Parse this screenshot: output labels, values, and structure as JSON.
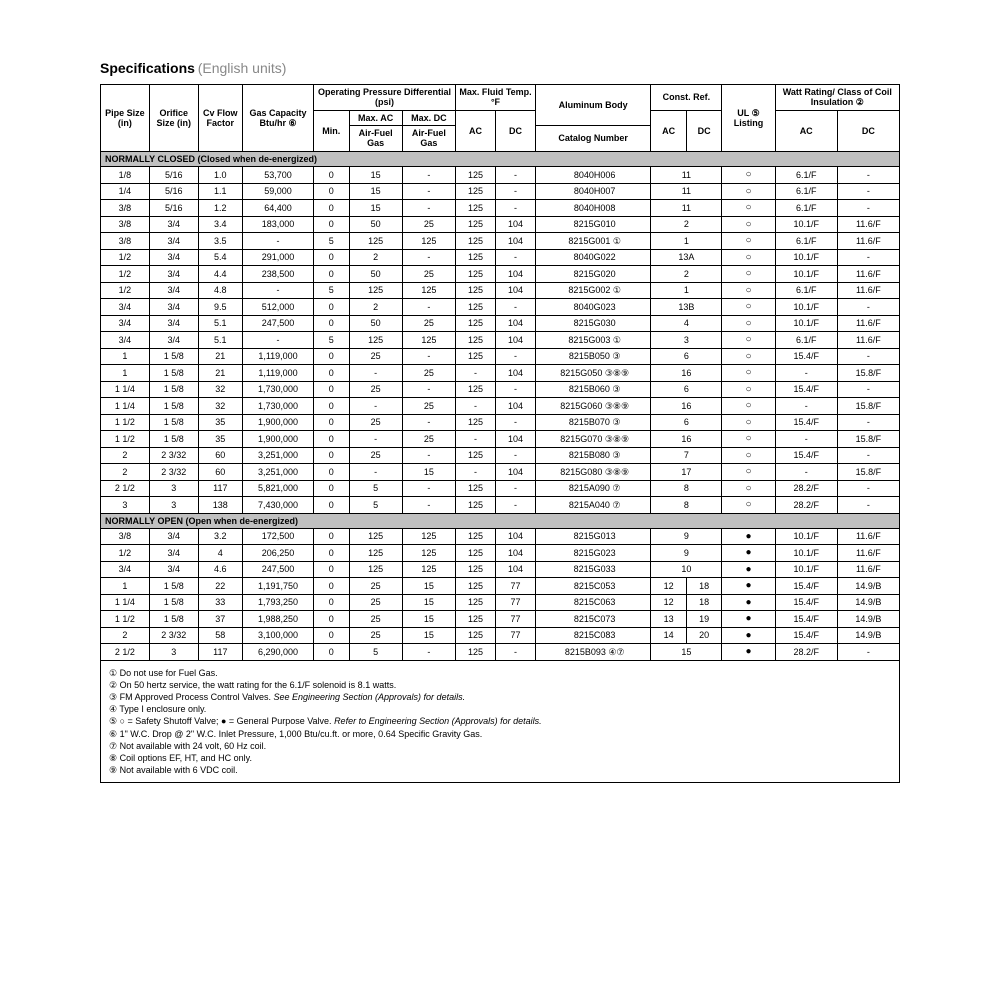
{
  "title_main": "Specifications",
  "title_sub": "(English units)",
  "headers": {
    "pipe": "Pipe Size (in)",
    "orifice": "Orifice Size (in)",
    "cv": "Cv Flow Factor",
    "gas": "Gas Capacity Btu/hr ⑥",
    "op_group": "Operating Pressure Differential (psi)",
    "min": "Min.",
    "maxac": "Max. AC",
    "maxdc": "Max. DC",
    "airfuel": "Air-Fuel Gas",
    "fluid_group": "Max. Fluid Temp. °F",
    "alum": "Aluminum Body",
    "catalog": "Catalog Number",
    "const_group": "Const. Ref.",
    "ac": "AC",
    "dc": "DC",
    "ul": "UL ⑤ Listing",
    "watt_group": "Watt Rating/ Class of Coil Insulation ②"
  },
  "section_closed": "NORMALLY CLOSED (Closed when de-energized)",
  "section_open": "NORMALLY OPEN (Open when de-energized)",
  "rows_closed": [
    {
      "pipe": "1/8",
      "orifice": "5/16",
      "cv": "1.0",
      "gas": "53,700",
      "min": "0",
      "maxac": "15",
      "maxdc": "-",
      "fac": "125",
      "fdc": "-",
      "catalog": "8040H006",
      "crefac": "11",
      "crefdc": "",
      "ul": "circle",
      "wac": "6.1/F",
      "wdc": "-",
      "cref_merge": true
    },
    {
      "pipe": "1/4",
      "orifice": "5/16",
      "cv": "1.1",
      "gas": "59,000",
      "min": "0",
      "maxac": "15",
      "maxdc": "-",
      "fac": "125",
      "fdc": "-",
      "catalog": "8040H007",
      "crefac": "11",
      "crefdc": "",
      "ul": "circle",
      "wac": "6.1/F",
      "wdc": "-",
      "cref_merge": true
    },
    {
      "pipe": "3/8",
      "orifice": "5/16",
      "cv": "1.2",
      "gas": "64,400",
      "min": "0",
      "maxac": "15",
      "maxdc": "-",
      "fac": "125",
      "fdc": "-",
      "catalog": "8040H008",
      "crefac": "11",
      "crefdc": "",
      "ul": "circle",
      "wac": "6.1/F",
      "wdc": "-",
      "cref_merge": true
    },
    {
      "pipe": "3/8",
      "orifice": "3/4",
      "cv": "3.4",
      "gas": "183,000",
      "min": "0",
      "maxac": "50",
      "maxdc": "25",
      "fac": "125",
      "fdc": "104",
      "catalog": "8215G010",
      "crefac": "2",
      "crefdc": "",
      "ul": "circle",
      "wac": "10.1/F",
      "wdc": "11.6/F",
      "cref_merge": true
    },
    {
      "pipe": "3/8",
      "orifice": "3/4",
      "cv": "3.5",
      "gas": "-",
      "min": "5",
      "maxac": "125",
      "maxdc": "125",
      "fac": "125",
      "fdc": "104",
      "catalog": "8215G001 ①",
      "crefac": "1",
      "crefdc": "",
      "ul": "circle",
      "wac": "6.1/F",
      "wdc": "11.6/F",
      "cref_merge": true
    },
    {
      "pipe": "1/2",
      "orifice": "3/4",
      "cv": "5.4",
      "gas": "291,000",
      "min": "0",
      "maxac": "2",
      "maxdc": "-",
      "fac": "125",
      "fdc": "-",
      "catalog": "8040G022",
      "crefac": "13A",
      "crefdc": "",
      "ul": "circle",
      "wac": "10.1/F",
      "wdc": "-",
      "cref_merge": true
    },
    {
      "pipe": "1/2",
      "orifice": "3/4",
      "cv": "4.4",
      "gas": "238,500",
      "min": "0",
      "maxac": "50",
      "maxdc": "25",
      "fac": "125",
      "fdc": "104",
      "catalog": "8215G020",
      "crefac": "2",
      "crefdc": "",
      "ul": "circle",
      "wac": "10.1/F",
      "wdc": "11.6/F",
      "cref_merge": true
    },
    {
      "pipe": "1/2",
      "orifice": "3/4",
      "cv": "4.8",
      "gas": "-",
      "min": "5",
      "maxac": "125",
      "maxdc": "125",
      "fac": "125",
      "fdc": "104",
      "catalog": "8215G002 ①",
      "crefac": "1",
      "crefdc": "",
      "ul": "circle",
      "wac": "6.1/F",
      "wdc": "11.6/F",
      "cref_merge": true
    },
    {
      "pipe": "3/4",
      "orifice": "3/4",
      "cv": "9.5",
      "gas": "512,000",
      "min": "0",
      "maxac": "2",
      "maxdc": "-",
      "fac": "125",
      "fdc": "-",
      "catalog": "8040G023",
      "crefac": "13B",
      "crefdc": "",
      "ul": "circle",
      "wac": "10.1/F",
      "wdc": "-",
      "cref_merge": true
    },
    {
      "pipe": "3/4",
      "orifice": "3/4",
      "cv": "5.1",
      "gas": "247,500",
      "min": "0",
      "maxac": "50",
      "maxdc": "25",
      "fac": "125",
      "fdc": "104",
      "catalog": "8215G030",
      "crefac": "4",
      "crefdc": "",
      "ul": "circle",
      "wac": "10.1/F",
      "wdc": "11.6/F",
      "cref_merge": true
    },
    {
      "pipe": "3/4",
      "orifice": "3/4",
      "cv": "5.1",
      "gas": "-",
      "min": "5",
      "maxac": "125",
      "maxdc": "125",
      "fac": "125",
      "fdc": "104",
      "catalog": "8215G003 ①",
      "crefac": "3",
      "crefdc": "",
      "ul": "circle",
      "wac": "6.1/F",
      "wdc": "11.6/F",
      "cref_merge": true
    },
    {
      "pipe": "1",
      "orifice": "1 5/8",
      "cv": "21",
      "gas": "1,119,000",
      "min": "0",
      "maxac": "25",
      "maxdc": "-",
      "fac": "125",
      "fdc": "-",
      "catalog": "8215B050 ③",
      "crefac": "6",
      "crefdc": "",
      "ul": "circle",
      "wac": "15.4/F",
      "wdc": "-",
      "cref_merge": true
    },
    {
      "pipe": "1",
      "orifice": "1 5/8",
      "cv": "21",
      "gas": "1,119,000",
      "min": "0",
      "maxac": "-",
      "maxdc": "25",
      "fac": "-",
      "fdc": "104",
      "catalog": "8215G050 ③⑧⑨",
      "crefac": "16",
      "crefdc": "",
      "ul": "circle",
      "wac": "-",
      "wdc": "15.8/F",
      "cref_merge": true
    },
    {
      "pipe": "1 1/4",
      "orifice": "1 5/8",
      "cv": "32",
      "gas": "1,730,000",
      "min": "0",
      "maxac": "25",
      "maxdc": "-",
      "fac": "125",
      "fdc": "-",
      "catalog": "8215B060 ③",
      "crefac": "6",
      "crefdc": "",
      "ul": "circle",
      "wac": "15.4/F",
      "wdc": "-",
      "cref_merge": true
    },
    {
      "pipe": "1 1/4",
      "orifice": "1 5/8",
      "cv": "32",
      "gas": "1,730,000",
      "min": "0",
      "maxac": "-",
      "maxdc": "25",
      "fac": "-",
      "fdc": "104",
      "catalog": "8215G060 ③⑧⑨",
      "crefac": "16",
      "crefdc": "",
      "ul": "circle",
      "wac": "-",
      "wdc": "15.8/F",
      "cref_merge": true
    },
    {
      "pipe": "1 1/2",
      "orifice": "1 5/8",
      "cv": "35",
      "gas": "1,900,000",
      "min": "0",
      "maxac": "25",
      "maxdc": "-",
      "fac": "125",
      "fdc": "-",
      "catalog": "8215B070 ③",
      "crefac": "6",
      "crefdc": "",
      "ul": "circle",
      "wac": "15.4/F",
      "wdc": "-",
      "cref_merge": true
    },
    {
      "pipe": "1 1/2",
      "orifice": "1 5/8",
      "cv": "35",
      "gas": "1,900,000",
      "min": "0",
      "maxac": "-",
      "maxdc": "25",
      "fac": "-",
      "fdc": "104",
      "catalog": "8215G070 ③⑧⑨",
      "crefac": "16",
      "crefdc": "",
      "ul": "circle",
      "wac": "-",
      "wdc": "15.8/F",
      "cref_merge": true
    },
    {
      "pipe": "2",
      "orifice": "2  3/32",
      "cv": "60",
      "gas": "3,251,000",
      "min": "0",
      "maxac": "25",
      "maxdc": "-",
      "fac": "125",
      "fdc": "-",
      "catalog": "8215B080 ③",
      "crefac": "7",
      "crefdc": "",
      "ul": "circle",
      "wac": "15.4/F",
      "wdc": "-",
      "cref_merge": true
    },
    {
      "pipe": "2",
      "orifice": "2  3/32",
      "cv": "60",
      "gas": "3,251,000",
      "min": "0",
      "maxac": "-",
      "maxdc": "15",
      "fac": "-",
      "fdc": "104",
      "catalog": "8215G080 ③⑧⑨",
      "crefac": "17",
      "crefdc": "",
      "ul": "circle",
      "wac": "-",
      "wdc": "15.8/F",
      "cref_merge": true
    },
    {
      "pipe": "2 1/2",
      "orifice": "3",
      "cv": "117",
      "gas": "5,821,000",
      "min": "0",
      "maxac": "5",
      "maxdc": "-",
      "fac": "125",
      "fdc": "-",
      "catalog": "8215A090 ⑦",
      "crefac": "8",
      "crefdc": "",
      "ul": "circle",
      "wac": "28.2/F",
      "wdc": "-",
      "cref_merge": true
    },
    {
      "pipe": "3",
      "orifice": "3",
      "cv": "138",
      "gas": "7,430,000",
      "min": "0",
      "maxac": "5",
      "maxdc": "-",
      "fac": "125",
      "fdc": "-",
      "catalog": "8215A040 ⑦",
      "crefac": "8",
      "crefdc": "",
      "ul": "circle",
      "wac": "28.2/F",
      "wdc": "-",
      "cref_merge": true
    }
  ],
  "rows_open": [
    {
      "pipe": "3/8",
      "orifice": "3/4",
      "cv": "3.2",
      "gas": "172,500",
      "min": "0",
      "maxac": "125",
      "maxdc": "125",
      "fac": "125",
      "fdc": "104",
      "catalog": "8215G013",
      "crefac": "9",
      "crefdc": "",
      "ul": "dot",
      "wac": "10.1/F",
      "wdc": "11.6/F",
      "cref_merge": true
    },
    {
      "pipe": "1/2",
      "orifice": "3/4",
      "cv": "4",
      "gas": "206,250",
      "min": "0",
      "maxac": "125",
      "maxdc": "125",
      "fac": "125",
      "fdc": "104",
      "catalog": "8215G023",
      "crefac": "9",
      "crefdc": "",
      "ul": "dot",
      "wac": "10.1/F",
      "wdc": "11.6/F",
      "cref_merge": true
    },
    {
      "pipe": "3/4",
      "orifice": "3/4",
      "cv": "4.6",
      "gas": "247,500",
      "min": "0",
      "maxac": "125",
      "maxdc": "125",
      "fac": "125",
      "fdc": "104",
      "catalog": "8215G033",
      "crefac": "10",
      "crefdc": "",
      "ul": "dot",
      "wac": "10.1/F",
      "wdc": "11.6/F",
      "cref_merge": true
    },
    {
      "pipe": "1",
      "orifice": "1 5/8",
      "cv": "22",
      "gas": "1,191,750",
      "min": "0",
      "maxac": "25",
      "maxdc": "15",
      "fac": "125",
      "fdc": "77",
      "catalog": "8215C053",
      "crefac": "12",
      "crefdc": "18",
      "ul": "dot",
      "wac": "15.4/F",
      "wdc": "14.9/B",
      "cref_merge": false
    },
    {
      "pipe": "1 1/4",
      "orifice": "1 5/8",
      "cv": "33",
      "gas": "1,793,250",
      "min": "0",
      "maxac": "25",
      "maxdc": "15",
      "fac": "125",
      "fdc": "77",
      "catalog": "8215C063",
      "crefac": "12",
      "crefdc": "18",
      "ul": "dot",
      "wac": "15.4/F",
      "wdc": "14.9/B",
      "cref_merge": false
    },
    {
      "pipe": "1 1/2",
      "orifice": "1 5/8",
      "cv": "37",
      "gas": "1,988,250",
      "min": "0",
      "maxac": "25",
      "maxdc": "15",
      "fac": "125",
      "fdc": "77",
      "catalog": "8215C073",
      "crefac": "13",
      "crefdc": "19",
      "ul": "dot",
      "wac": "15.4/F",
      "wdc": "14.9/B",
      "cref_merge": false
    },
    {
      "pipe": "2",
      "orifice": "2 3/32",
      "cv": "58",
      "gas": "3,100,000",
      "min": "0",
      "maxac": "25",
      "maxdc": "15",
      "fac": "125",
      "fdc": "77",
      "catalog": "8215C083",
      "crefac": "14",
      "crefdc": "20",
      "ul": "dot",
      "wac": "15.4/F",
      "wdc": "14.9/B",
      "cref_merge": false
    },
    {
      "pipe": "2 1/2",
      "orifice": "3",
      "cv": "117",
      "gas": "6,290,000",
      "min": "0",
      "maxac": "5",
      "maxdc": "-",
      "fac": "125",
      "fdc": "-",
      "catalog": "8215B093 ④⑦",
      "crefac": "15",
      "crefdc": "",
      "ul": "dot",
      "wac": "28.2/F",
      "wdc": "-",
      "cref_merge": true
    }
  ],
  "footnotes": [
    {
      "t": "① Do not use for Fuel Gas."
    },
    {
      "t": "② On 50 hertz service, the watt rating for the 6.1/F solenoid is 8.1 watts."
    },
    {
      "t": "③ FM Approved Process Control Valves. ",
      "it": "See Engineering Section (Approvals) for details."
    },
    {
      "t": "④ Type I enclosure only."
    },
    {
      "t": "⑤ ○ = Safety Shutoff Valve; ● = General Purpose Valve. ",
      "it": "Refer to Engineering Section (Approvals) for details."
    },
    {
      "t": "⑥ 1\" W.C. Drop @ 2\" W.C. Inlet Pressure, 1,000 Btu/cu.ft. or more, 0.64 Specific Gravity Gas."
    },
    {
      "t": "⑦ Not available with 24 volt, 60 Hz coil."
    },
    {
      "t": "⑧ Coil options EF, HT, and HC only."
    },
    {
      "t": "⑨ Not available with 6 VDC coil."
    }
  ],
  "colwidths": [
    "5.5%",
    "5.5%",
    "5%",
    "8%",
    "4%",
    "6%",
    "6%",
    "4.5%",
    "4.5%",
    "13%",
    "4%",
    "4%",
    "6%",
    "7%",
    "7%"
  ]
}
